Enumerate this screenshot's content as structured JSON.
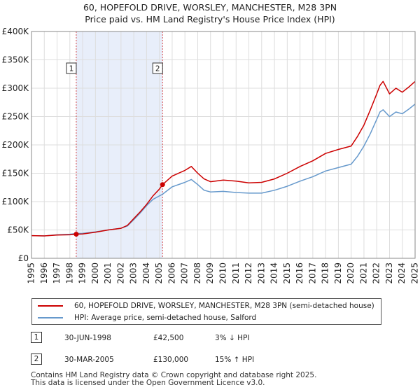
{
  "title_line1": "60, HOPEFOLD DRIVE, WORSLEY, MANCHESTER, M28 3PN",
  "title_line2": "Price paid vs. HM Land Registry's House Price Index (HPI)",
  "chart_data": {
    "type": "line",
    "title": "60, HOPEFOLD DRIVE, WORSLEY, MANCHESTER, M28 3PN — Price paid vs. HM Land Registry's House Price Index (HPI)",
    "xlabel": "",
    "ylabel": "",
    "xlim": [
      1995.0,
      2025.0
    ],
    "ylim": [
      0,
      400000
    ],
    "x_ticks": [
      1995,
      1996,
      1997,
      1998,
      1999,
      2000,
      2001,
      2002,
      2003,
      2004,
      2005,
      2006,
      2007,
      2008,
      2009,
      2010,
      2011,
      2012,
      2013,
      2014,
      2015,
      2016,
      2017,
      2018,
      2019,
      2020,
      2021,
      2022,
      2023,
      2024,
      2025
    ],
    "x_tick_labels": [
      "1995",
      "1996",
      "1997",
      "1998",
      "1999",
      "2000",
      "2001",
      "2002",
      "2003",
      "2004",
      "2005",
      "2006",
      "2007",
      "2008",
      "2009",
      "2010",
      "2011",
      "2012",
      "2013",
      "2014",
      "2015",
      "2016",
      "2017",
      "2018",
      "2019",
      "2020",
      "2021",
      "2022",
      "2023",
      "2024",
      "2025"
    ],
    "y_ticks": [
      0,
      50000,
      100000,
      150000,
      200000,
      250000,
      300000,
      350000,
      400000
    ],
    "y_tick_labels": [
      "£0",
      "£50K",
      "£100K",
      "£150K",
      "£200K",
      "£250K",
      "£300K",
      "£350K",
      "£400K"
    ],
    "grid": true,
    "shaded_region": [
      1998.5,
      2005.25
    ],
    "series": [
      {
        "name": "60, HOPEFOLD DRIVE, WORSLEY, MANCHESTER, M28 3PN (semi-detached house)",
        "color": "#cc0000",
        "x": [
          1995.0,
          1996.0,
          1997.0,
          1998.0,
          1998.5,
          1999.0,
          2000.0,
          2001.0,
          2002.0,
          2002.5,
          2003.0,
          2003.5,
          2004.0,
          2004.5,
          2005.0,
          2005.25,
          2006.0,
          2007.0,
          2007.5,
          2008.0,
          2008.5,
          2009.0,
          2010.0,
          2011.0,
          2012.0,
          2013.0,
          2014.0,
          2015.0,
          2016.0,
          2017.0,
          2018.0,
          2019.0,
          2020.0,
          2020.5,
          2021.0,
          2021.5,
          2022.0,
          2022.25,
          2022.5,
          2023.0,
          2023.5,
          2024.0,
          2024.5,
          2025.0
        ],
        "values": [
          40000,
          39500,
          41000,
          41500,
          42500,
          43000,
          46000,
          50000,
          53000,
          58000,
          70000,
          82000,
          95000,
          110000,
          122000,
          130000,
          145000,
          155000,
          162000,
          150000,
          140000,
          135000,
          138000,
          136000,
          133000,
          134000,
          140000,
          150000,
          162000,
          172000,
          185000,
          192000,
          198000,
          215000,
          235000,
          262000,
          290000,
          305000,
          312000,
          290000,
          300000,
          293000,
          302000,
          312000
        ]
      },
      {
        "name": "HPI: Average price, semi-detached house, Salford",
        "color": "#6699cc",
        "x": [
          1995.0,
          1996.0,
          1997.0,
          1998.0,
          1998.5,
          1999.0,
          2000.0,
          2001.0,
          2002.0,
          2002.5,
          2003.0,
          2003.5,
          2004.0,
          2004.5,
          2005.0,
          2005.25,
          2006.0,
          2007.0,
          2007.5,
          2008.0,
          2008.5,
          2009.0,
          2010.0,
          2011.0,
          2012.0,
          2013.0,
          2014.0,
          2015.0,
          2016.0,
          2017.0,
          2018.0,
          2019.0,
          2020.0,
          2020.5,
          2021.0,
          2021.5,
          2022.0,
          2022.25,
          2022.5,
          2023.0,
          2023.5,
          2024.0,
          2024.5,
          2025.0
        ],
        "values": [
          40000,
          39500,
          41500,
          42500,
          43800,
          44000,
          46500,
          50000,
          53000,
          57000,
          68000,
          80000,
          93000,
          104000,
          110000,
          113000,
          126000,
          134000,
          139000,
          130000,
          120000,
          117000,
          118000,
          116000,
          115000,
          115000,
          120000,
          127000,
          136000,
          144000,
          154000,
          160000,
          166000,
          180000,
          198000,
          220000,
          245000,
          258000,
          262000,
          250000,
          258000,
          255000,
          263000,
          272000
        ]
      }
    ],
    "sales": [
      {
        "label": "1",
        "x": 1998.5,
        "price": 42500
      },
      {
        "label": "2",
        "x": 2005.25,
        "price": 130000
      }
    ],
    "legend_position": "bottom"
  },
  "legend": {
    "property": "60, HOPEFOLD DRIVE, WORSLEY, MANCHESTER, M28 3PN (semi-detached house)",
    "hpi": "HPI: Average price, semi-detached house, Salford"
  },
  "sales_table": [
    {
      "num": "1",
      "date": "30-JUN-1998",
      "price": "£42,500",
      "hpi": "3% ↓ HPI"
    },
    {
      "num": "2",
      "date": "30-MAR-2005",
      "price": "£130,000",
      "hpi": "15% ↑ HPI"
    }
  ],
  "footer_line1": "Contains HM Land Registry data © Crown copyright and database right 2025.",
  "footer_line2": "This data is licensed under the Open Government Licence v3.0.",
  "colors": {
    "property": "#cc0000",
    "hpi": "#6699cc",
    "shade": "#e8eefa",
    "grid": "#dddddd"
  }
}
